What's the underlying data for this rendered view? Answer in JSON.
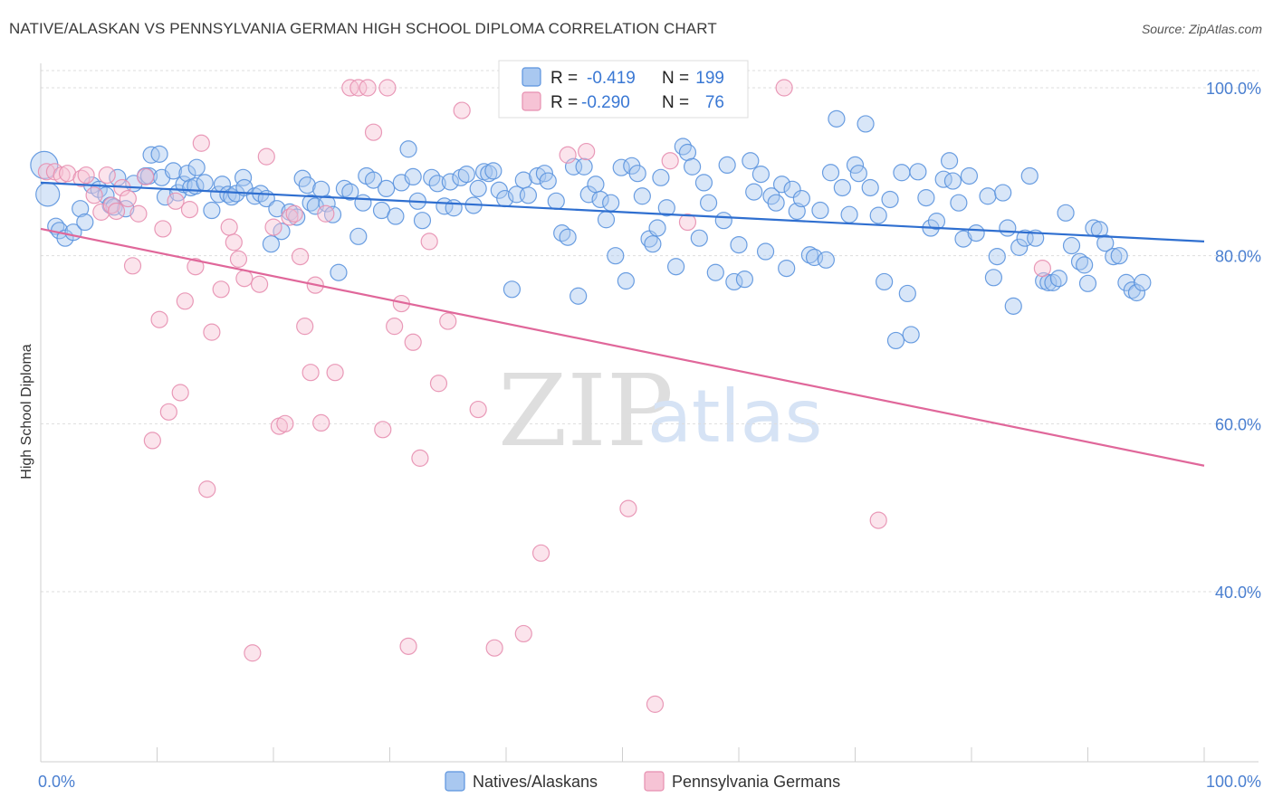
{
  "title": "NATIVE/ALASKAN VS PENNSYLVANIA GERMAN HIGH SCHOOL DIPLOMA CORRELATION CHART",
  "source": "Source: ZipAtlas.com",
  "watermark": {
    "zip": "ZIP",
    "atlas": "atlas"
  },
  "colors": {
    "blue": "#5b93de",
    "blue_fill": "#a9c8f0",
    "blue_line": "#2f6fd0",
    "pink": "#e78fb0",
    "pink_fill": "#f6c3d5",
    "pink_line": "#e0679a",
    "grid": "#dddddd",
    "axis_label": "#4a7fd0"
  },
  "chart_data": {
    "type": "scatter",
    "xlabel": "",
    "ylabel": "High School Diploma",
    "xlim": [
      0,
      100
    ],
    "ylim": [
      20,
      102
    ],
    "x_tick_labels": [
      {
        "value": 0,
        "label": "0.0%"
      },
      {
        "value": 100,
        "label": "100.0%"
      }
    ],
    "y_tick_labels": [
      {
        "value": 40,
        "label": "40.0%"
      },
      {
        "value": 60,
        "label": "60.0%"
      },
      {
        "value": 80,
        "label": "80.0%"
      },
      {
        "value": 100,
        "label": "100.0%"
      }
    ],
    "grid": true,
    "legend_position": "top-center",
    "stats": [
      {
        "r_label": "R =",
        "r_value": "-0.419",
        "n_label": "N =",
        "n_value": "199"
      },
      {
        "r_label": "R =",
        "r_value": "-0.290",
        "n_label": "N =",
        "n_value": "76"
      }
    ],
    "series": [
      {
        "name": "Natives/Alaskans",
        "color": "#5b93de",
        "trend": {
          "x": [
            0,
            100
          ],
          "y": [
            88.7,
            81.7
          ]
        },
        "points": [
          [
            0.3,
            90.8
          ],
          [
            0.6,
            87.3
          ],
          [
            1.3,
            83.5
          ],
          [
            1.6,
            83.0
          ],
          [
            2.1,
            82.1
          ],
          [
            2.8,
            82.8
          ],
          [
            3.4,
            85.6
          ],
          [
            3.8,
            84.0
          ],
          [
            4.4,
            88.4
          ],
          [
            5.0,
            87.9
          ],
          [
            5.6,
            87.2
          ],
          [
            6.0,
            86.0
          ],
          [
            6.3,
            85.8
          ],
          [
            6.6,
            89.3
          ],
          [
            7.3,
            85.6
          ],
          [
            8.0,
            88.6
          ],
          [
            9.0,
            89.5
          ],
          [
            9.3,
            89.5
          ],
          [
            9.5,
            92.0
          ],
          [
            10.2,
            92.1
          ],
          [
            10.4,
            89.3
          ],
          [
            10.7,
            87.0
          ],
          [
            11.4,
            90.1
          ],
          [
            11.8,
            87.5
          ],
          [
            12.3,
            88.5
          ],
          [
            12.6,
            89.8
          ],
          [
            12.9,
            88.1
          ],
          [
            13.3,
            88.3
          ],
          [
            13.4,
            90.5
          ],
          [
            14.1,
            88.7
          ],
          [
            14.7,
            85.4
          ],
          [
            15.3,
            87.3
          ],
          [
            15.6,
            88.5
          ],
          [
            16.1,
            87.3
          ],
          [
            16.4,
            87.0
          ],
          [
            16.8,
            87.4
          ],
          [
            17.4,
            89.3
          ],
          [
            17.5,
            88.1
          ],
          [
            18.4,
            87.1
          ],
          [
            18.9,
            87.4
          ],
          [
            19.4,
            86.8
          ],
          [
            19.8,
            81.4
          ],
          [
            20.3,
            85.6
          ],
          [
            20.7,
            82.9
          ],
          [
            21.4,
            85.2
          ],
          [
            22.0,
            84.6
          ],
          [
            22.5,
            89.2
          ],
          [
            22.9,
            88.4
          ],
          [
            23.2,
            86.3
          ],
          [
            23.6,
            85.9
          ],
          [
            24.1,
            87.9
          ],
          [
            24.6,
            86.2
          ],
          [
            25.1,
            84.9
          ],
          [
            25.6,
            78.0
          ],
          [
            26.1,
            88.0
          ],
          [
            26.6,
            87.6
          ],
          [
            27.3,
            82.3
          ],
          [
            27.7,
            86.3
          ],
          [
            28.0,
            89.5
          ],
          [
            28.6,
            89.0
          ],
          [
            29.3,
            85.4
          ],
          [
            29.7,
            88.0
          ],
          [
            30.5,
            84.7
          ],
          [
            31.0,
            88.7
          ],
          [
            31.6,
            92.7
          ],
          [
            32.0,
            89.4
          ],
          [
            32.4,
            86.5
          ],
          [
            32.8,
            84.2
          ],
          [
            33.6,
            89.3
          ],
          [
            34.1,
            88.6
          ],
          [
            34.7,
            85.9
          ],
          [
            35.2,
            88.8
          ],
          [
            35.5,
            85.7
          ],
          [
            36.1,
            89.3
          ],
          [
            36.6,
            89.7
          ],
          [
            37.2,
            86.0
          ],
          [
            37.6,
            88.0
          ],
          [
            38.1,
            90.0
          ],
          [
            38.5,
            89.8
          ],
          [
            38.9,
            90.1
          ],
          [
            39.4,
            87.8
          ],
          [
            39.9,
            86.8
          ],
          [
            40.5,
            76.0
          ],
          [
            40.9,
            87.3
          ],
          [
            41.5,
            89.0
          ],
          [
            41.9,
            87.2
          ],
          [
            42.7,
            89.5
          ],
          [
            43.3,
            89.8
          ],
          [
            43.6,
            88.9
          ],
          [
            44.3,
            86.5
          ],
          [
            44.8,
            82.7
          ],
          [
            45.3,
            82.2
          ],
          [
            45.8,
            90.6
          ],
          [
            46.2,
            75.2
          ],
          [
            46.7,
            90.6
          ],
          [
            47.1,
            87.3
          ],
          [
            47.7,
            88.5
          ],
          [
            48.1,
            86.7
          ],
          [
            48.6,
            84.3
          ],
          [
            49.0,
            86.3
          ],
          [
            49.4,
            80.0
          ],
          [
            49.9,
            90.5
          ],
          [
            50.3,
            77.0
          ],
          [
            50.8,
            90.7
          ],
          [
            51.3,
            89.8
          ],
          [
            51.7,
            87.1
          ],
          [
            52.3,
            82.0
          ],
          [
            52.6,
            81.4
          ],
          [
            53.0,
            83.3
          ],
          [
            53.3,
            89.3
          ],
          [
            53.8,
            85.7
          ],
          [
            54.6,
            78.7
          ],
          [
            55.2,
            93.0
          ],
          [
            55.6,
            92.3
          ],
          [
            56.0,
            90.6
          ],
          [
            56.6,
            82.1
          ],
          [
            57.0,
            88.7
          ],
          [
            57.4,
            86.3
          ],
          [
            58.0,
            78.0
          ],
          [
            58.7,
            84.2
          ],
          [
            59.0,
            90.8
          ],
          [
            59.6,
            76.9
          ],
          [
            60.0,
            81.3
          ],
          [
            60.5,
            77.2
          ],
          [
            61.0,
            91.3
          ],
          [
            61.3,
            87.6
          ],
          [
            61.9,
            89.7
          ],
          [
            62.3,
            80.5
          ],
          [
            62.8,
            87.1
          ],
          [
            63.2,
            86.3
          ],
          [
            63.7,
            88.5
          ],
          [
            64.1,
            78.5
          ],
          [
            64.6,
            87.9
          ],
          [
            65.0,
            85.3
          ],
          [
            65.4,
            86.8
          ],
          [
            66.1,
            80.1
          ],
          [
            66.5,
            79.8
          ],
          [
            67.0,
            85.4
          ],
          [
            67.5,
            79.5
          ],
          [
            67.9,
            89.9
          ],
          [
            68.4,
            96.3
          ],
          [
            68.9,
            88.1
          ],
          [
            69.5,
            84.9
          ],
          [
            70.0,
            90.8
          ],
          [
            70.3,
            89.8
          ],
          [
            70.9,
            95.7
          ],
          [
            71.3,
            88.1
          ],
          [
            72.0,
            84.8
          ],
          [
            72.5,
            76.9
          ],
          [
            73.0,
            86.7
          ],
          [
            73.5,
            69.9
          ],
          [
            74.0,
            89.9
          ],
          [
            74.5,
            75.5
          ],
          [
            74.8,
            70.6
          ],
          [
            75.4,
            90.0
          ],
          [
            76.1,
            86.9
          ],
          [
            76.5,
            83.3
          ],
          [
            77.0,
            84.1
          ],
          [
            77.6,
            89.1
          ],
          [
            78.1,
            91.3
          ],
          [
            78.4,
            88.9
          ],
          [
            78.9,
            86.3
          ],
          [
            79.3,
            82.0
          ],
          [
            79.8,
            89.5
          ],
          [
            80.4,
            82.7
          ],
          [
            81.4,
            87.1
          ],
          [
            81.9,
            77.4
          ],
          [
            82.2,
            79.9
          ],
          [
            82.7,
            87.5
          ],
          [
            83.1,
            83.3
          ],
          [
            83.6,
            74.0
          ],
          [
            84.1,
            81.0
          ],
          [
            84.6,
            82.1
          ],
          [
            85.0,
            89.5
          ],
          [
            85.5,
            82.1
          ],
          [
            86.2,
            77.0
          ],
          [
            86.6,
            76.8
          ],
          [
            87.0,
            76.8
          ],
          [
            87.5,
            77.3
          ],
          [
            88.1,
            85.1
          ],
          [
            88.6,
            81.2
          ],
          [
            89.3,
            79.3
          ],
          [
            89.7,
            78.9
          ],
          [
            90.0,
            76.7
          ],
          [
            90.5,
            83.3
          ],
          [
            91.0,
            83.1
          ],
          [
            91.5,
            81.5
          ],
          [
            92.2,
            79.9
          ],
          [
            92.7,
            80.0
          ],
          [
            93.3,
            76.8
          ],
          [
            93.8,
            75.9
          ],
          [
            94.2,
            75.6
          ],
          [
            94.7,
            76.8
          ]
        ]
      },
      {
        "name": "Pennsylvania Germans",
        "color": "#e78fb0",
        "trend": {
          "x": [
            0,
            100
          ],
          "y": [
            83.2,
            55.0
          ]
        },
        "points": [
          [
            0.5,
            90.0
          ],
          [
            1.2,
            90.0
          ],
          [
            1.8,
            89.6
          ],
          [
            2.3,
            89.8
          ],
          [
            3.5,
            89.2
          ],
          [
            3.9,
            89.6
          ],
          [
            4.6,
            87.2
          ],
          [
            5.2,
            85.2
          ],
          [
            5.7,
            89.6
          ],
          [
            6.1,
            86.0
          ],
          [
            6.5,
            85.3
          ],
          [
            7.0,
            88.1
          ],
          [
            7.5,
            86.8
          ],
          [
            7.9,
            78.8
          ],
          [
            8.4,
            85.0
          ],
          [
            9.0,
            89.4
          ],
          [
            9.6,
            58.0
          ],
          [
            10.2,
            72.4
          ],
          [
            10.5,
            83.2
          ],
          [
            11.0,
            61.4
          ],
          [
            11.6,
            86.5
          ],
          [
            12.0,
            63.7
          ],
          [
            12.4,
            74.6
          ],
          [
            12.8,
            85.5
          ],
          [
            13.3,
            78.7
          ],
          [
            13.8,
            93.4
          ],
          [
            14.3,
            52.2
          ],
          [
            14.7,
            70.9
          ],
          [
            15.5,
            76.0
          ],
          [
            16.2,
            83.4
          ],
          [
            16.6,
            81.6
          ],
          [
            17.0,
            79.6
          ],
          [
            17.5,
            77.3
          ],
          [
            18.2,
            32.7
          ],
          [
            18.8,
            76.6
          ],
          [
            19.4,
            91.8
          ],
          [
            20.0,
            83.4
          ],
          [
            20.5,
            59.7
          ],
          [
            21.0,
            60.0
          ],
          [
            21.4,
            84.6
          ],
          [
            21.8,
            85.0
          ],
          [
            22.3,
            79.9
          ],
          [
            22.7,
            71.6
          ],
          [
            23.2,
            66.1
          ],
          [
            23.6,
            76.5
          ],
          [
            24.1,
            60.1
          ],
          [
            24.5,
            85.0
          ],
          [
            25.3,
            66.1
          ],
          [
            26.6,
            100.0
          ],
          [
            27.3,
            100.0
          ],
          [
            28.1,
            100.0
          ],
          [
            28.6,
            94.7
          ],
          [
            29.4,
            59.3
          ],
          [
            29.8,
            100.0
          ],
          [
            30.4,
            71.6
          ],
          [
            31.0,
            74.3
          ],
          [
            31.6,
            33.5
          ],
          [
            32.0,
            69.7
          ],
          [
            32.6,
            55.9
          ],
          [
            33.4,
            81.7
          ],
          [
            34.2,
            64.8
          ],
          [
            35.0,
            72.2
          ],
          [
            36.2,
            97.3
          ],
          [
            37.6,
            61.7
          ],
          [
            39.0,
            33.3
          ],
          [
            41.5,
            35.0
          ],
          [
            43.0,
            44.6
          ],
          [
            45.3,
            92.0
          ],
          [
            46.9,
            92.4
          ],
          [
            50.5,
            49.9
          ],
          [
            52.8,
            26.6
          ],
          [
            54.1,
            91.3
          ],
          [
            55.6,
            84.0
          ],
          [
            63.9,
            100.0
          ],
          [
            72.0,
            48.5
          ],
          [
            86.1,
            78.5
          ]
        ]
      }
    ]
  }
}
